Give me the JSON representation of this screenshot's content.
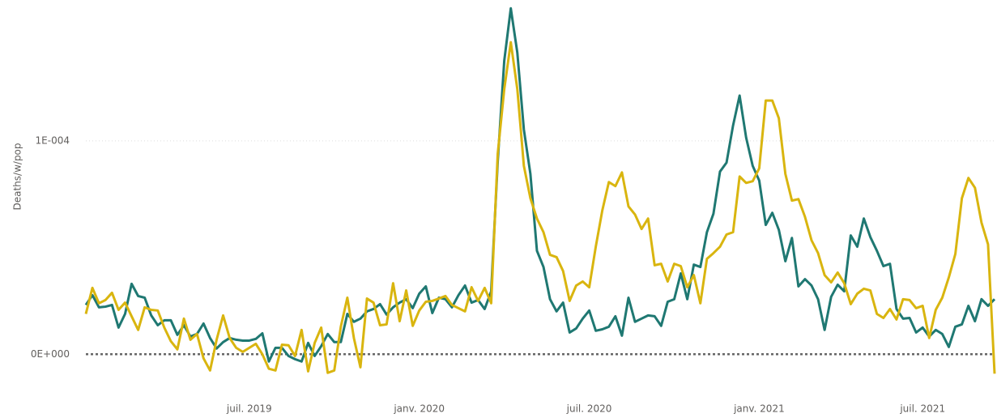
{
  "chart_data": {
    "type": "line",
    "y_label": "Deaths/w/pop",
    "categories": [
      null,
      null,
      null,
      null,
      null,
      null,
      null,
      null,
      null,
      null,
      null,
      null,
      null,
      null,
      null,
      null,
      null,
      null,
      null,
      null,
      null,
      null,
      null,
      null,
      null,
      "juil. 2019",
      null,
      null,
      null,
      null,
      null,
      null,
      null,
      null,
      null,
      null,
      null,
      null,
      null,
      null,
      null,
      null,
      null,
      null,
      null,
      null,
      null,
      null,
      null,
      null,
      null,
      "janv. 2020",
      null,
      null,
      null,
      null,
      null,
      null,
      null,
      null,
      null,
      null,
      null,
      null,
      null,
      null,
      null,
      null,
      null,
      null,
      null,
      null,
      null,
      null,
      null,
      null,
      null,
      "juil. 2020",
      null,
      null,
      null,
      null,
      null,
      null,
      null,
      null,
      null,
      null,
      null,
      null,
      null,
      null,
      null,
      null,
      null,
      null,
      null,
      null,
      null,
      null,
      null,
      null,
      null,
      "janv. 2021",
      null,
      null,
      null,
      null,
      null,
      null,
      null,
      null,
      null,
      null,
      null,
      null,
      null,
      null,
      null,
      null,
      null,
      null,
      null,
      null,
      null,
      null,
      null,
      null,
      "juil. 2021",
      null,
      null,
      null,
      null,
      null,
      null,
      null,
      null,
      null,
      null,
      null
    ],
    "series": [
      {
        "color": "#1f7872",
        "values": [
          2.31e-05,
          2.77e-05,
          2.2e-05,
          2.23e-05,
          2.31e-05,
          1.25e-05,
          1.89e-05,
          3.3e-05,
          2.73e-05,
          2.65e-05,
          1.82e-05,
          1.36e-05,
          1.59e-05,
          1.59e-05,
          9.1e-06,
          1.36e-05,
          8.3e-06,
          9.5e-06,
          1.44e-05,
          7.6e-06,
          2.7e-06,
          5.7e-06,
          7.6e-06,
          6.8e-06,
          6.4e-06,
          6.4e-06,
          7.2e-06,
          9.8e-06,
          -3.4e-06,
          3e-06,
          3e-06,
          -8e-07,
          -2.3e-06,
          -3.4e-06,
          5.3e-06,
          -8e-07,
          3.8e-06,
          9.5e-06,
          5.7e-06,
          5.7e-06,
          1.89e-05,
          1.52e-05,
          1.67e-05,
          2.01e-05,
          2.12e-05,
          2.35e-05,
          1.86e-05,
          2.2e-05,
          2.42e-05,
          2.58e-05,
          2.16e-05,
          2.84e-05,
          3.18e-05,
          1.93e-05,
          2.65e-05,
          2.58e-05,
          2.2e-05,
          2.77e-05,
          3.22e-05,
          2.42e-05,
          2.54e-05,
          2.12e-05,
          2.95e-05,
          9.02e-05,
          0.0001375,
          0.0001621,
          0.0001413,
          0.0001053,
          8.45e-05,
          4.85e-05,
          4.09e-05,
          2.58e-05,
          2.01e-05,
          2.42e-05,
          1.02e-05,
          1.21e-05,
          1.67e-05,
          2.05e-05,
          1.1e-05,
          1.17e-05,
          1.29e-05,
          1.78e-05,
          8.7e-06,
          2.65e-05,
          1.52e-05,
          1.67e-05,
          1.82e-05,
          1.78e-05,
          1.33e-05,
          2.46e-05,
          2.58e-05,
          3.79e-05,
          2.58e-05,
          4.2e-05,
          4.09e-05,
          5.72e-05,
          6.59e-05,
          8.56e-05,
          8.98e-05,
          0.0001072,
          0.0001212,
          0.0001015,
          8.83e-05,
          8.14e-05,
          6.06e-05,
          6.63e-05,
          5.83e-05,
          4.36e-05,
          5.45e-05,
          3.18e-05,
          3.52e-05,
          3.22e-05,
          2.58e-05,
          1.14e-05,
          2.69e-05,
          3.26e-05,
          2.95e-05,
          5.57e-05,
          5.04e-05,
          6.36e-05,
          5.49e-05,
          4.85e-05,
          4.13e-05,
          4.24e-05,
          2.12e-05,
          1.67e-05,
          1.7e-05,
          1.02e-05,
          1.25e-05,
          8.3e-06,
          1.14e-05,
          9.5e-06,
          3.4e-06,
          1.29e-05,
          1.4e-05,
          2.27e-05,
          1.55e-05,
          2.58e-05,
          2.27e-05,
          2.58e-05
        ]
      },
      {
        "color": "#d9b50f",
        "values": [
          1.89e-05,
          3.11e-05,
          2.39e-05,
          2.54e-05,
          2.88e-05,
          2.08e-05,
          2.42e-05,
          1.78e-05,
          1.14e-05,
          2.2e-05,
          2.08e-05,
          2.05e-05,
          1.25e-05,
          6.1e-06,
          2.3e-06,
          1.67e-05,
          6.8e-06,
          9.5e-06,
          -1.9e-06,
          -7.6e-06,
          6.8e-06,
          1.82e-05,
          7.6e-06,
          3e-06,
          1.1e-06,
          3e-06,
          4.9e-06,
          0,
          -6.8e-06,
          -7.6e-06,
          4.5e-06,
          4.2e-06,
          -8e-07,
          1.14e-05,
          -8e-06,
          5.3e-06,
          1.25e-05,
          -8.7e-06,
          -7.6e-06,
          1.29e-05,
          2.65e-05,
          7.6e-06,
          -6.1e-06,
          2.61e-05,
          2.42e-05,
          1.36e-05,
          1.4e-05,
          3.33e-05,
          1.55e-05,
          2.99e-05,
          1.33e-05,
          2.05e-05,
          2.46e-05,
          2.5e-05,
          2.61e-05,
          2.73e-05,
          2.31e-05,
          2.16e-05,
          2.01e-05,
          3.14e-05,
          2.5e-05,
          3.11e-05,
          2.39e-05,
          9.39e-05,
          0.0001242,
          0.0001462,
          0.0001242,
          8.83e-05,
          7.31e-05,
          6.36e-05,
          5.72e-05,
          4.66e-05,
          4.55e-05,
          3.9e-05,
          2.5e-05,
          3.22e-05,
          3.41e-05,
          3.14e-05,
          5.04e-05,
          6.74e-05,
          8.07e-05,
          7.88e-05,
          8.52e-05,
          6.93e-05,
          6.55e-05,
          5.87e-05,
          6.36e-05,
          4.17e-05,
          4.24e-05,
          3.41e-05,
          4.24e-05,
          4.13e-05,
          3.14e-05,
          3.71e-05,
          2.39e-05,
          4.47e-05,
          4.74e-05,
          5.04e-05,
          5.61e-05,
          5.72e-05,
          8.33e-05,
          8.03e-05,
          8.11e-05,
          8.71e-05,
          0.0001189,
          0.0001189,
          0.0001106,
          8.45e-05,
          7.2e-05,
          7.27e-05,
          6.44e-05,
          5.34e-05,
          4.74e-05,
          3.71e-05,
          3.37e-05,
          3.83e-05,
          3.33e-05,
          2.35e-05,
          2.84e-05,
          3.07e-05,
          2.99e-05,
          1.89e-05,
          1.7e-05,
          2.12e-05,
          1.63e-05,
          2.58e-05,
          2.54e-05,
          2.16e-05,
          2.27e-05,
          7.6e-06,
          2.08e-05,
          2.65e-05,
          3.6e-05,
          4.7e-05,
          7.31e-05,
          8.26e-05,
          7.8e-05,
          6.17e-05,
          5.15e-05,
          -9.1e-06
        ]
      }
    ],
    "ylim": [
      -2e-05,
      0.000166
    ],
    "yticks": [
      {
        "value": 0,
        "label": "0E+000"
      },
      {
        "value": 0.0001,
        "label": "1E-004"
      }
    ],
    "grid": true
  }
}
